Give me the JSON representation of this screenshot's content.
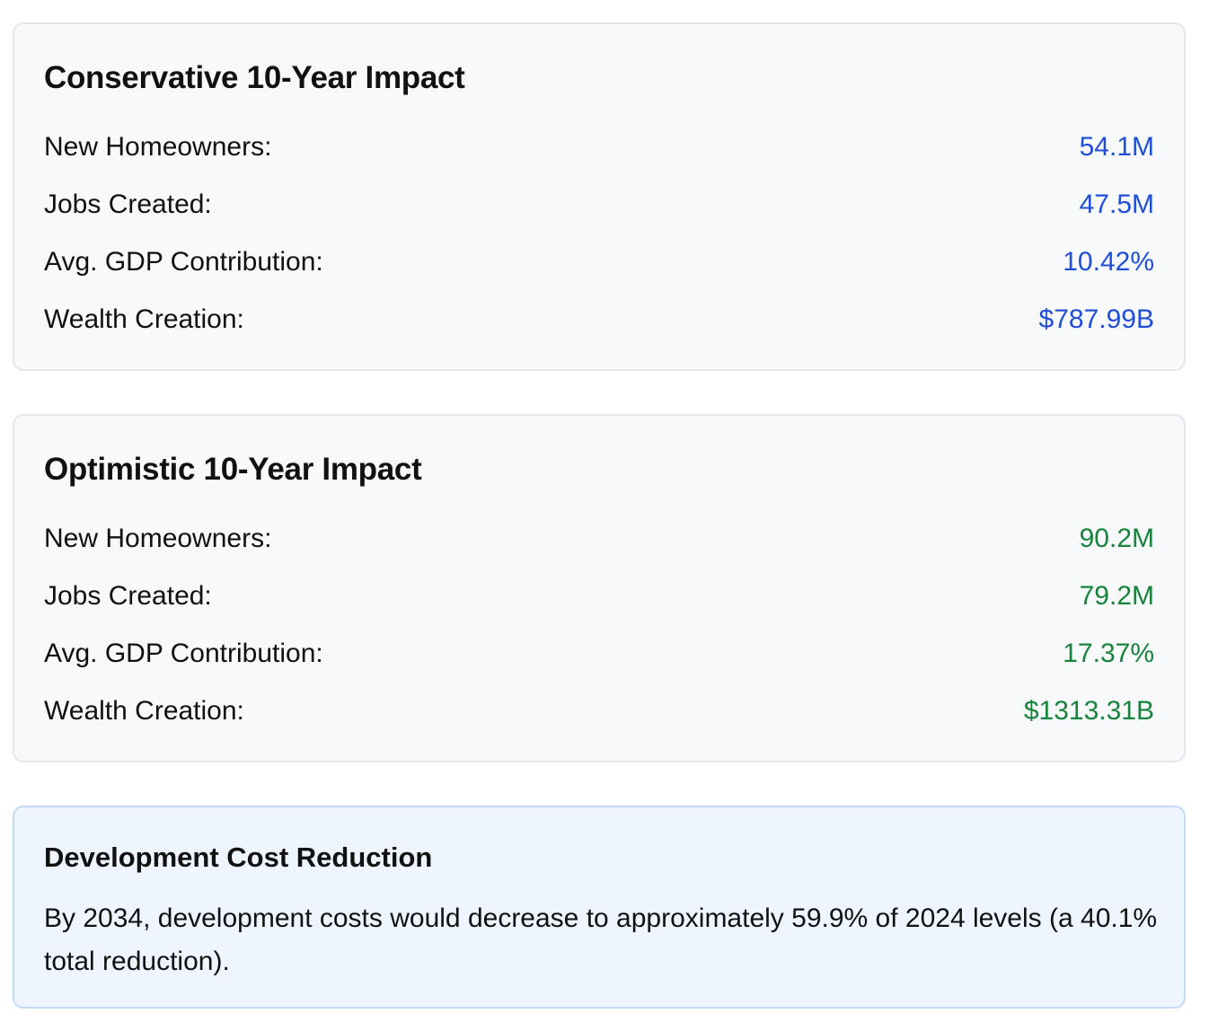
{
  "conservative": {
    "title": "Conservative 10-Year Impact",
    "rows": [
      {
        "label": "New Homeowners:",
        "value": "54.1M"
      },
      {
        "label": "Jobs Created:",
        "value": "47.5M"
      },
      {
        "label": "Avg. GDP Contribution:",
        "value": "10.42%"
      },
      {
        "label": "Wealth Creation:",
        "value": "$787.99B"
      }
    ],
    "value_color": "#1f4fd6"
  },
  "optimistic": {
    "title": "Optimistic 10-Year Impact",
    "rows": [
      {
        "label": "New Homeowners:",
        "value": "90.2M"
      },
      {
        "label": "Jobs Created:",
        "value": "79.2M"
      },
      {
        "label": "Avg. GDP Contribution:",
        "value": "17.37%"
      },
      {
        "label": "Wealth Creation:",
        "value": "$1313.31B"
      }
    ],
    "value_color": "#16843a"
  },
  "reduction": {
    "title": "Development Cost Reduction",
    "text": "By 2034, development costs would decrease to approximately 59.9% of 2024 levels (a 40.1% total reduction).",
    "background_color": "#eef5ff"
  }
}
